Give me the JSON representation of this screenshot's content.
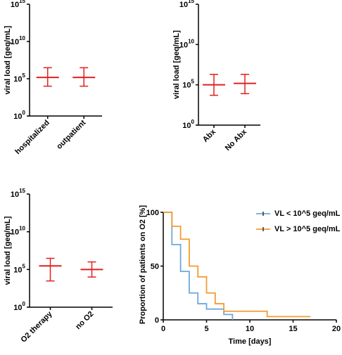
{
  "chart_data": [
    {
      "type": "dot",
      "y_label": "viral load [geq/mL]",
      "categories": [
        "hospitalized",
        "outpatient"
      ],
      "median": [
        150000,
        150000
      ],
      "q1": [
        10000,
        10000
      ],
      "q3": [
        3000000,
        3000000
      ],
      "color": "#e02020",
      "log_scale": true,
      "ylim": [
        1,
        1000000000000000.0
      ],
      "yticks": [
        {
          "value": 1,
          "label": "10",
          "exponent": "0"
        },
        {
          "value": 100000,
          "label": "10",
          "exponent": "5"
        },
        {
          "value": 10000000000.0,
          "label": "10",
          "exponent": "10"
        },
        {
          "value": 1000000000000000.0,
          "label": "10",
          "exponent": "15"
        }
      ]
    },
    {
      "type": "dot",
      "y_label": "viral load [geq/mL]",
      "categories": [
        "Abx",
        "No Abx"
      ],
      "median": [
        100000,
        150000
      ],
      "q1": [
        5000,
        8000
      ],
      "q3": [
        2000000,
        2000000
      ],
      "color": "#e02020",
      "log_scale": true,
      "ylim": [
        1,
        1000000000000000.0
      ],
      "yticks": [
        {
          "value": 1,
          "label": "10",
          "exponent": "0"
        },
        {
          "value": 100000,
          "label": "10",
          "exponent": "5"
        },
        {
          "value": 10000000000.0,
          "label": "10",
          "exponent": "10"
        },
        {
          "value": 1000000000000000.0,
          "label": "10",
          "exponent": "15"
        }
      ]
    },
    {
      "type": "dot",
      "y_label": "viral load [geq/mL]",
      "categories": [
        "O2 therapy",
        "no O2"
      ],
      "median": [
        300000,
        100000
      ],
      "q1": [
        3000,
        10000
      ],
      "q3": [
        3000000,
        1000000
      ],
      "color": "#e02020",
      "log_scale": true,
      "ylim": [
        1,
        1000000000000000.0
      ],
      "yticks": [
        {
          "value": 1,
          "label": "10",
          "exponent": "0"
        },
        {
          "value": 100000,
          "label": "10",
          "exponent": "5"
        },
        {
          "value": 10000000000.0,
          "label": "10",
          "exponent": "10"
        },
        {
          "value": 1000000000000000.0,
          "label": "10",
          "exponent": "15"
        }
      ]
    },
    {
      "type": "step",
      "x_label": "Time [days]",
      "y_label": "Proportion of patients on O2 [%]",
      "series": [
        {
          "name": "VL < 10^5 geq/mL",
          "color": "#6fa8dc",
          "x": [
            0,
            1,
            2,
            3,
            4,
            5,
            7,
            8
          ],
          "values": [
            100,
            70,
            45,
            25,
            15,
            10,
            5,
            0
          ]
        },
        {
          "name": "VL > 10^5 geq/mL",
          "color": "#f39c32",
          "x": [
            0,
            1,
            2,
            3,
            4,
            5,
            6,
            7,
            12,
            17
          ],
          "values": [
            100,
            87,
            75,
            50,
            40,
            25,
            15,
            8,
            3,
            3
          ]
        }
      ],
      "xlim": [
        0,
        20
      ],
      "xticks": [
        0,
        5,
        10,
        15,
        20
      ],
      "ylim": [
        0,
        100
      ],
      "yticks": [
        0,
        50,
        100
      ],
      "legend": "upper right"
    }
  ]
}
